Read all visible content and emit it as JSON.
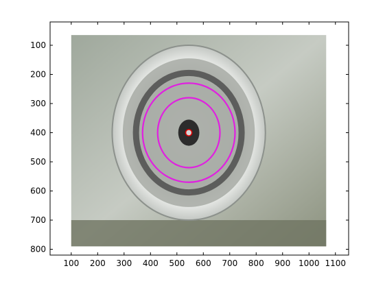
{
  "figure": {
    "x_axis": {
      "range": [
        20,
        1150
      ],
      "ticks": [
        100,
        200,
        300,
        400,
        500,
        600,
        700,
        800,
        900,
        1000,
        1100
      ],
      "labels": [
        "100",
        "200",
        "300",
        "400",
        "500",
        "600",
        "700",
        "800",
        "900",
        "1000",
        "1100"
      ]
    },
    "y_axis": {
      "range": [
        20,
        820
      ],
      "direction": "down",
      "ticks": [
        100,
        200,
        300,
        400,
        500,
        600,
        700,
        800
      ],
      "labels": [
        "100",
        "200",
        "300",
        "400",
        "500",
        "600",
        "700",
        "800"
      ]
    },
    "image": {
      "extent_x": [
        100,
        1065
      ],
      "extent_y": [
        65,
        790
      ],
      "description_icon": "omnidirectional-camera-photo"
    },
    "overlays": {
      "center": {
        "x": 545,
        "y": 400
      },
      "outer_ellipse": {
        "rx": 175,
        "ry": 170,
        "color": "#e020e0"
      },
      "inner_ellipse": {
        "rx": 118,
        "ry": 120,
        "color": "#e020e0"
      },
      "center_marker": {
        "radius": 12,
        "color": "#e00000"
      }
    },
    "colors": {
      "axes": "#000000",
      "background": "#ffffff"
    }
  }
}
